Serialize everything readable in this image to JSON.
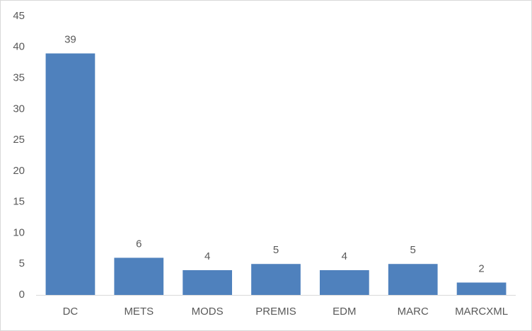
{
  "chart_data": {
    "type": "bar",
    "categories": [
      "DC",
      "METS",
      "MODS",
      "PREMIS",
      "EDM",
      "MARC",
      "MARCXML"
    ],
    "values": [
      39,
      6,
      4,
      5,
      4,
      5,
      2
    ],
    "color": "#4f81bd",
    "ylim": [
      0,
      45
    ],
    "yticks": [
      0,
      5,
      10,
      15,
      20,
      25,
      30,
      35,
      40,
      45
    ],
    "grid": false,
    "data_labels": true
  }
}
